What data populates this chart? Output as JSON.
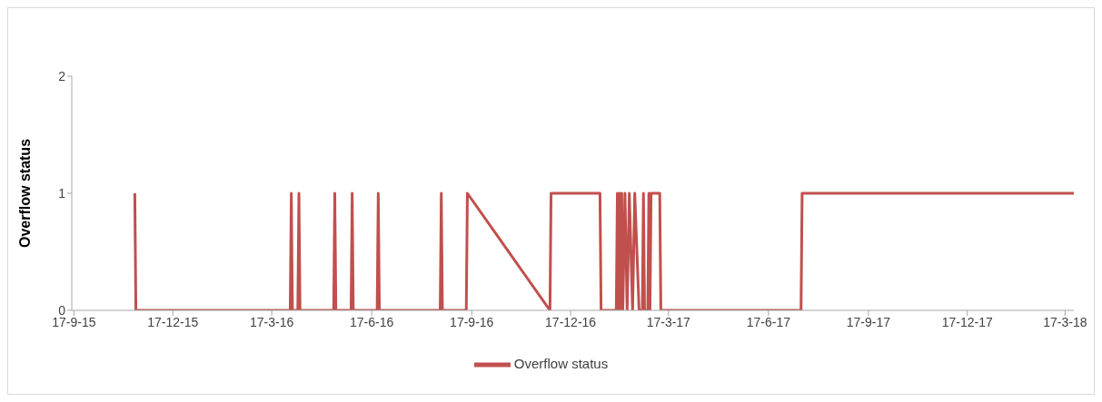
{
  "chart_data": {
    "type": "line",
    "ylabel": "Overflow status",
    "x": [
      "2015-11-12",
      "2015-11-13",
      "2016-04-03",
      "2016-04-04",
      "2016-04-05",
      "2016-04-10",
      "2016-04-11",
      "2016-04-12",
      "2016-05-13",
      "2016-05-14",
      "2016-05-15",
      "2016-05-29",
      "2016-05-30",
      "2016-05-31",
      "2016-06-22",
      "2016-06-23",
      "2016-06-24",
      "2016-08-19",
      "2016-08-20",
      "2016-08-21",
      "2016-09-12",
      "2016-09-13",
      "2016-11-28",
      "2016-11-29",
      "2017-01-13",
      "2017-01-14",
      "2017-01-28",
      "2017-01-29",
      "2017-01-30",
      "2017-01-31",
      "2017-02-01",
      "2017-02-02",
      "2017-02-03",
      "2017-02-05",
      "2017-02-07",
      "2017-02-09",
      "2017-02-12",
      "2017-02-14",
      "2017-02-18",
      "2017-02-21",
      "2017-02-22",
      "2017-02-23",
      "2017-02-26",
      "2017-02-27",
      "2017-02-28",
      "2017-03-01",
      "2017-03-09",
      "2017-03-10",
      "2017-07-17",
      "2017-07-18",
      "2018-03-25"
    ],
    "series": [
      {
        "name": "Overflow status",
        "color": "#c0504d",
        "values": [
          1,
          0,
          0,
          1,
          0,
          0,
          1,
          0,
          0,
          1,
          0,
          0,
          1,
          0,
          0,
          1,
          0,
          0,
          1,
          0,
          0,
          1,
          0,
          1,
          1,
          0,
          0,
          1,
          0,
          1,
          0,
          1,
          0,
          1,
          0,
          1,
          0,
          1,
          0,
          0,
          1,
          0,
          0,
          1,
          0,
          1,
          1,
          0,
          0,
          1,
          1
        ]
      }
    ],
    "xlim": [
      "2015-09-15",
      "2018-03-25"
    ],
    "xticks": [
      {
        "value": "2015-09-17",
        "label": "17-9-15"
      },
      {
        "value": "2015-12-17",
        "label": "17-12-15"
      },
      {
        "value": "2016-03-17",
        "label": "17-3-16"
      },
      {
        "value": "2016-06-17",
        "label": "17-6-16"
      },
      {
        "value": "2016-09-17",
        "label": "17-9-16"
      },
      {
        "value": "2016-12-17",
        "label": "17-12-16"
      },
      {
        "value": "2017-03-17",
        "label": "17-3-17"
      },
      {
        "value": "2017-06-17",
        "label": "17-6-17"
      },
      {
        "value": "2017-09-17",
        "label": "17-9-17"
      },
      {
        "value": "2017-12-17",
        "label": "17-12-17"
      },
      {
        "value": "2018-03-17",
        "label": "17-3-18"
      }
    ],
    "ylim": [
      0,
      2
    ],
    "yticks": [
      0,
      1,
      2
    ],
    "grid": false,
    "legend": "bottom"
  }
}
